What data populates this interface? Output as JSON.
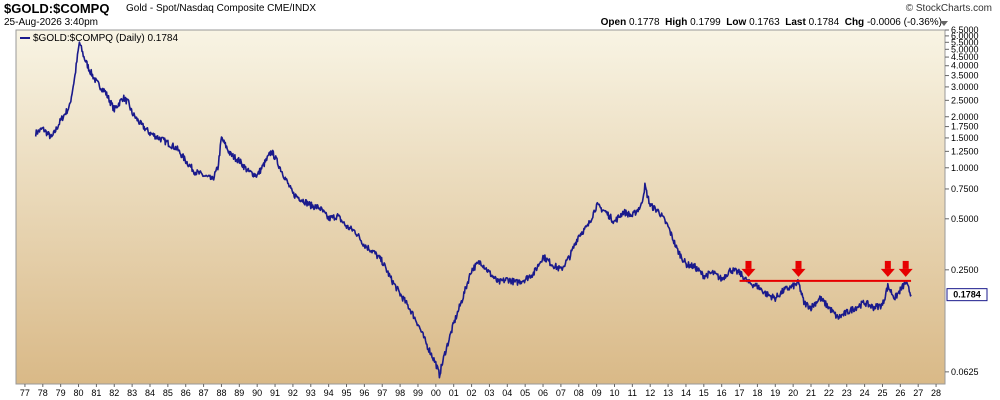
{
  "header": {
    "symbol": "$GOLD:$COMPQ",
    "description": "Gold - Spot/Nasdaq Composite  CME/INDX",
    "date": "25-Aug-2026 3:40pm",
    "brand": "© StockCharts.com",
    "open_label": "Open",
    "open": "0.1778",
    "high_label": "High",
    "high": "0.1799",
    "low_label": "Low",
    "low": "0.1763",
    "last_label": "Last",
    "last": "0.1784",
    "chg_label": "Chg",
    "chg": "-0.0006 (-0.36%)"
  },
  "legend": {
    "text": "$GOLD:$COMPQ (Daily) 0.1784"
  },
  "colors": {
    "line": "#1a1a8c",
    "resistance": "#e60000",
    "arrow": "#e60000",
    "bg_top": "#f8f4e4",
    "bg_bottom": "#d9b987"
  },
  "chart_data": {
    "type": "line",
    "y_scale": "log",
    "ylim": [
      0.053,
      6.5
    ],
    "xlim": [
      1976.5,
      2028.5
    ],
    "y_ticks": [
      {
        "v": 6.5,
        "label": "6.5000"
      },
      {
        "v": 6.0,
        "label": "6.0000"
      },
      {
        "v": 5.5,
        "label": "5.5000"
      },
      {
        "v": 5.0,
        "label": "5.0000"
      },
      {
        "v": 4.5,
        "label": "4.5000"
      },
      {
        "v": 4.0,
        "label": "4.0000"
      },
      {
        "v": 3.5,
        "label": "3.5000"
      },
      {
        "v": 3.0,
        "label": "3.0000"
      },
      {
        "v": 2.5,
        "label": "2.5000"
      },
      {
        "v": 2.0,
        "label": "2.0000"
      },
      {
        "v": 1.75,
        "label": "1.7500"
      },
      {
        "v": 1.5,
        "label": "1.5000"
      },
      {
        "v": 1.25,
        "label": "1.2500"
      },
      {
        "v": 1.0,
        "label": "1.0000"
      },
      {
        "v": 0.75,
        "label": "0.7500"
      },
      {
        "v": 0.5,
        "label": "0.5000"
      },
      {
        "v": 0.25,
        "label": "0.2500"
      },
      {
        "v": 0.0625,
        "label": "0.0625"
      }
    ],
    "x_ticks": [
      "77",
      "78",
      "79",
      "80",
      "81",
      "82",
      "83",
      "84",
      "85",
      "86",
      "87",
      "88",
      "89",
      "90",
      "91",
      "92",
      "93",
      "94",
      "95",
      "96",
      "97",
      "98",
      "99",
      "00",
      "01",
      "02",
      "03",
      "04",
      "05",
      "06",
      "07",
      "08",
      "09",
      "10",
      "11",
      "12",
      "13",
      "14",
      "15",
      "16",
      "17",
      "18",
      "19",
      "20",
      "21",
      "22",
      "23",
      "24",
      "25",
      "26",
      "27",
      "28"
    ],
    "x_tick_start": 1977,
    "last_value": 0.1784,
    "last_value_label": "0.1784",
    "resistance_level": 0.215,
    "resistance_x": [
      2017.0,
      2026.6
    ],
    "arrows_x": [
      2017.5,
      2020.3,
      2025.3,
      2026.3
    ],
    "series": [
      {
        "x": [
          1977.6,
          1978.0,
          1978.5,
          1979.0,
          1979.5,
          1979.8,
          1980.05,
          1980.3,
          1980.6,
          1981.0,
          1981.5,
          1982.0,
          1982.5,
          1982.8,
          1983.0,
          1983.5,
          1984.0,
          1984.5,
          1985.0,
          1985.5,
          1986.0,
          1986.5,
          1987.0,
          1987.5,
          1987.8,
          1988.0,
          1988.5,
          1989.0,
          1989.5,
          1990.0,
          1990.5,
          1990.8,
          1991.0,
          1991.5,
          1992.0,
          1992.5,
          1993.0,
          1993.5,
          1994.0,
          1994.5,
          1995.0,
          1995.5,
          1996.0,
          1996.5,
          1997.0,
          1997.5,
          1998.0,
          1998.5,
          1999.0,
          1999.5,
          2000.0,
          2000.2,
          2000.5,
          2001.0,
          2001.5,
          2002.0,
          2002.5,
          2003.0,
          2003.5,
          2004.0,
          2004.5,
          2005.0,
          2005.5,
          2006.0,
          2006.5,
          2007.0,
          2007.5,
          2008.0,
          2008.5,
          2009.0,
          2009.5,
          2010.0,
          2010.5,
          2011.0,
          2011.5,
          2011.7,
          2012.0,
          2012.5,
          2013.0,
          2013.5,
          2014.0,
          2014.5,
          2015.0,
          2015.5,
          2016.0,
          2016.5,
          2017.0,
          2017.5,
          2018.0,
          2018.5,
          2019.0,
          2019.5,
          2020.0,
          2020.3,
          2020.6,
          2021.0,
          2021.5,
          2022.0,
          2022.5,
          2023.0,
          2023.5,
          2024.0,
          2024.5,
          2025.0,
          2025.3,
          2025.7,
          2026.0,
          2026.3,
          2026.6
        ],
        "y": [
          1.6,
          1.7,
          1.5,
          1.9,
          2.3,
          3.5,
          5.5,
          4.5,
          3.8,
          3.2,
          2.8,
          2.2,
          2.6,
          2.4,
          2.1,
          1.8,
          1.6,
          1.5,
          1.4,
          1.3,
          1.1,
          0.95,
          0.9,
          0.85,
          1.0,
          1.5,
          1.2,
          1.1,
          0.95,
          0.9,
          1.1,
          1.25,
          1.15,
          0.9,
          0.7,
          0.65,
          0.6,
          0.58,
          0.5,
          0.52,
          0.45,
          0.42,
          0.35,
          0.32,
          0.28,
          0.22,
          0.18,
          0.15,
          0.12,
          0.09,
          0.07,
          0.06,
          0.08,
          0.12,
          0.17,
          0.25,
          0.28,
          0.24,
          0.21,
          0.22,
          0.21,
          0.22,
          0.24,
          0.3,
          0.27,
          0.25,
          0.3,
          0.4,
          0.45,
          0.6,
          0.55,
          0.48,
          0.55,
          0.52,
          0.6,
          0.78,
          0.6,
          0.55,
          0.45,
          0.33,
          0.27,
          0.26,
          0.23,
          0.24,
          0.22,
          0.25,
          0.24,
          0.21,
          0.2,
          0.18,
          0.17,
          0.19,
          0.2,
          0.21,
          0.16,
          0.15,
          0.17,
          0.15,
          0.13,
          0.14,
          0.15,
          0.16,
          0.15,
          0.155,
          0.2,
          0.17,
          0.19,
          0.21,
          0.1784
        ]
      }
    ]
  }
}
